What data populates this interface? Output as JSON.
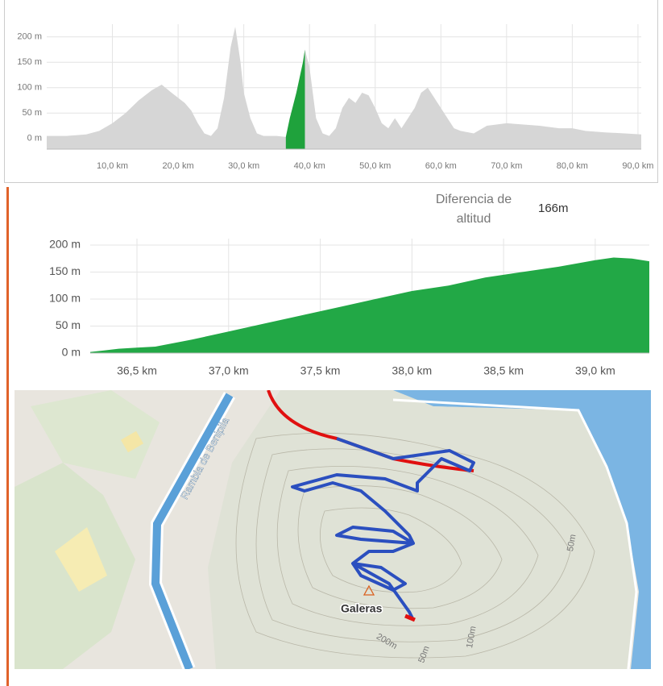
{
  "overview": {
    "type": "area",
    "x": [
      0,
      3,
      6,
      8,
      10,
      12,
      14,
      16,
      17.5,
      19,
      20,
      21,
      22,
      23,
      24,
      25,
      26,
      27,
      28,
      28.7,
      29.5,
      30,
      31,
      32,
      33,
      35,
      36.4,
      37,
      38,
      39,
      39.3,
      40,
      41,
      42,
      43,
      44,
      45,
      46,
      47,
      48,
      49,
      50,
      51,
      52,
      53,
      54,
      55,
      56,
      57,
      58,
      59,
      60,
      61,
      62,
      63,
      65,
      67,
      70,
      72,
      75,
      78,
      80,
      82,
      85,
      88,
      90.5
    ],
    "values": [
      5,
      5,
      8,
      15,
      30,
      50,
      75,
      95,
      106,
      90,
      80,
      70,
      55,
      30,
      10,
      5,
      20,
      80,
      180,
      220,
      150,
      90,
      40,
      10,
      5,
      5,
      3,
      40,
      90,
      150,
      175,
      140,
      40,
      10,
      5,
      20,
      60,
      80,
      70,
      90,
      85,
      60,
      30,
      20,
      40,
      20,
      40,
      60,
      90,
      100,
      80,
      60,
      40,
      20,
      15,
      10,
      25,
      30,
      28,
      25,
      20,
      20,
      15,
      12,
      10,
      8
    ],
    "color": "#d6d6d6",
    "highlight": {
      "x": [
        36.4,
        37,
        37.5,
        38,
        38.5,
        39,
        39.3
      ],
      "values": [
        3,
        40,
        65,
        90,
        120,
        150,
        175
      ],
      "color": "#1fa23c"
    },
    "xlim": [
      0,
      90.5
    ],
    "ylim": [
      -21,
      225
    ],
    "xticks": [
      {
        "value": 10,
        "label": "10,0 km"
      },
      {
        "value": 20,
        "label": "20,0 km"
      },
      {
        "value": 30,
        "label": "30,0 km"
      },
      {
        "value": 40,
        "label": "40,0 km"
      },
      {
        "value": 50,
        "label": "50,0 km"
      },
      {
        "value": 60,
        "label": "60,0 km"
      },
      {
        "value": 70,
        "label": "70,0 km"
      },
      {
        "value": 80,
        "label": "80,0 km"
      },
      {
        "value": 90,
        "label": "90,0 km"
      }
    ],
    "yticks": [
      {
        "value": 0,
        "label": "0 m"
      },
      {
        "value": 50,
        "label": "50 m"
      },
      {
        "value": 100,
        "label": "100 m"
      },
      {
        "value": 150,
        "label": "150 m"
      },
      {
        "value": 200,
        "label": "200 m"
      }
    ],
    "grid": true
  },
  "altitude_difference": {
    "label": "Diferencia de altitud",
    "value": "166m"
  },
  "detail": {
    "type": "area",
    "x": [
      36.245,
      36.4,
      36.5,
      36.6,
      36.8,
      37.0,
      37.2,
      37.4,
      37.6,
      37.8,
      38.0,
      38.2,
      38.4,
      38.6,
      38.8,
      39.0,
      39.1,
      39.2,
      39.295
    ],
    "values": [
      2,
      8,
      10,
      12,
      25,
      40,
      55,
      70,
      85,
      100,
      115,
      125,
      140,
      150,
      160,
      172,
      177,
      175,
      170
    ],
    "color": "#22a846",
    "xlim": [
      36.245,
      39.295
    ],
    "ylim": [
      0,
      212
    ],
    "xticks": [
      {
        "value": 36.5,
        "label": "36,5 km"
      },
      {
        "value": 37.0,
        "label": "37,0 km"
      },
      {
        "value": 37.5,
        "label": "37,5 km"
      },
      {
        "value": 38.0,
        "label": "38,0 km"
      },
      {
        "value": 38.5,
        "label": "38,5 km"
      },
      {
        "value": 39.0,
        "label": "39,0 km"
      }
    ],
    "yticks": [
      {
        "value": 0,
        "label": "0 m"
      },
      {
        "value": 50,
        "label": "50 m"
      },
      {
        "value": 100,
        "label": "100 m"
      },
      {
        "value": 150,
        "label": "150 m"
      },
      {
        "value": 200,
        "label": "200 m"
      }
    ],
    "grid": true
  },
  "map": {
    "street": "Rambla de Benipila",
    "peak": "Galeras",
    "contours": [
      "200m",
      "100m",
      "50m",
      "50m"
    ]
  }
}
